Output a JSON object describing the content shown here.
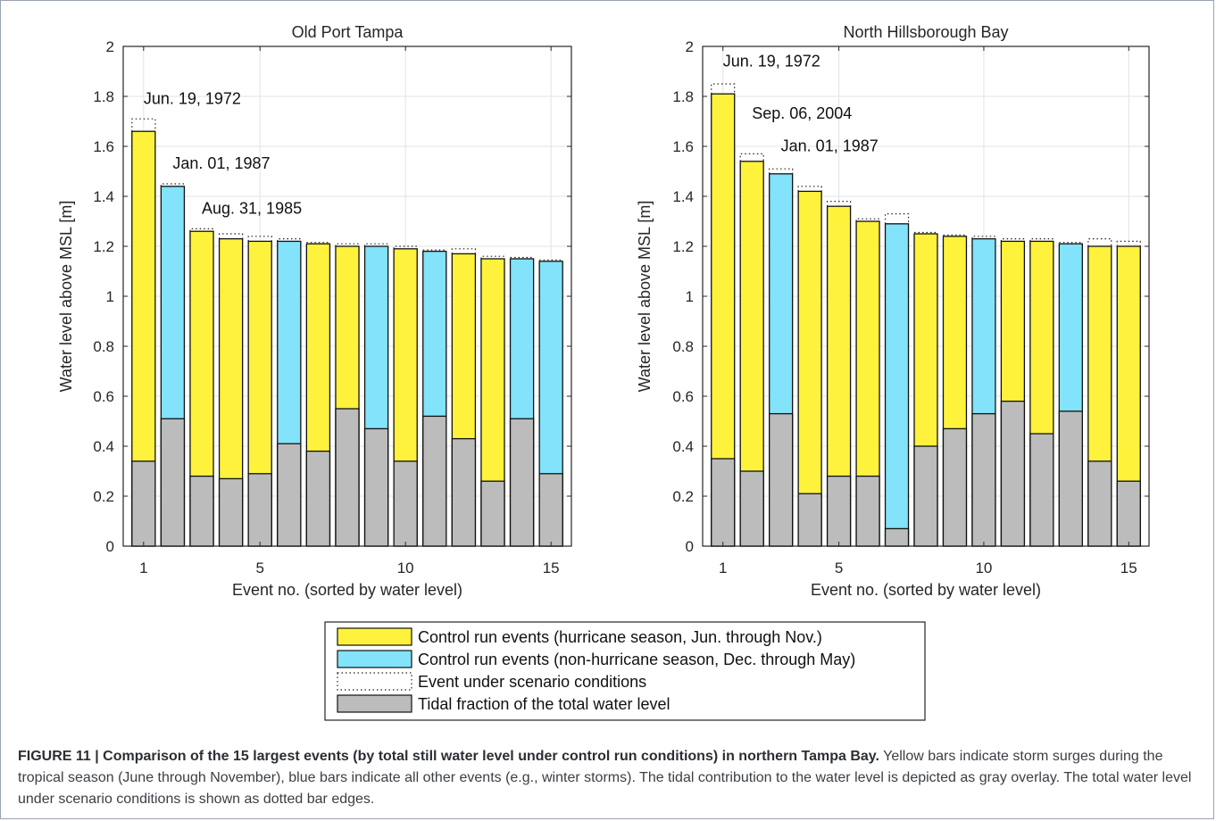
{
  "chart_data": [
    {
      "type": "bar",
      "title": "Old Port Tampa",
      "xlabel": "Event no. (sorted by water level)",
      "ylabel": "Water level above MSL [m]",
      "x": [
        1,
        2,
        3,
        4,
        5,
        6,
        7,
        8,
        9,
        10,
        11,
        12,
        13,
        14,
        15
      ],
      "xlim": [
        0.3,
        15.7
      ],
      "ylim": [
        0,
        2
      ],
      "xticks": [
        1,
        5,
        10,
        15
      ],
      "yticks": [
        0,
        0.2,
        0.4,
        0.6,
        0.8,
        1,
        1.2,
        1.4,
        1.6,
        1.8,
        2
      ],
      "ytick_labels": [
        "0",
        "0.2",
        "0.4",
        "0.6",
        "0.8",
        "1",
        "1.2",
        "1.4",
        "1.6",
        "1.8",
        "2"
      ],
      "grid": true,
      "series": [
        {
          "name": "Control run events (hurricane season, Jun. through Nov.)",
          "color": "#fef23c",
          "values": [
            1.66,
            null,
            1.26,
            1.23,
            1.22,
            null,
            1.21,
            1.2,
            null,
            1.19,
            null,
            1.17,
            1.15,
            null,
            null
          ]
        },
        {
          "name": "Control run events (non-hurricane season, Dec. through May)",
          "color": "#82e3fa",
          "values": [
            null,
            1.44,
            null,
            null,
            null,
            1.22,
            null,
            null,
            1.2,
            null,
            1.18,
            null,
            null,
            1.15,
            1.14
          ]
        },
        {
          "name": "Event under scenario conditions",
          "values": [
            1.71,
            1.45,
            1.27,
            1.25,
            1.24,
            1.23,
            1.21,
            1.21,
            1.21,
            1.2,
            1.18,
            1.19,
            1.16,
            1.15,
            1.14
          ]
        },
        {
          "name": "Tidal fraction of the total water level",
          "color": "#bcbcbc",
          "values": [
            0.34,
            0.51,
            0.28,
            0.27,
            0.29,
            0.41,
            0.38,
            0.55,
            0.47,
            0.34,
            0.52,
            0.43,
            0.26,
            0.51,
            0.29
          ]
        }
      ],
      "annotations": [
        {
          "text": "Jun. 19, 1972",
          "x": 1,
          "y": 1.77
        },
        {
          "text": "Jan. 01, 1987",
          "x": 2,
          "y": 1.51
        },
        {
          "text": "Aug. 31, 1985",
          "x": 3,
          "y": 1.33
        }
      ]
    },
    {
      "type": "bar",
      "title": "North Hillsborough Bay",
      "xlabel": "Event no. (sorted by water level)",
      "ylabel": "Water level above MSL [m]",
      "x": [
        1,
        2,
        3,
        4,
        5,
        6,
        7,
        8,
        9,
        10,
        11,
        12,
        13,
        14,
        15
      ],
      "xlim": [
        0.3,
        15.7
      ],
      "ylim": [
        0,
        2
      ],
      "xticks": [
        1,
        5,
        10,
        15
      ],
      "yticks": [
        0,
        0.2,
        0.4,
        0.6,
        0.8,
        1,
        1.2,
        1.4,
        1.6,
        1.8,
        2
      ],
      "ytick_labels": [
        "0",
        "0.2",
        "0.4",
        "0.6",
        "0.8",
        "1",
        "1.2",
        "1.4",
        "1.6",
        "1.8",
        "2"
      ],
      "grid": true,
      "series": [
        {
          "name": "Control run events (hurricane season, Jun. through Nov.)",
          "color": "#fef23c",
          "values": [
            1.81,
            1.54,
            null,
            1.42,
            1.36,
            1.3,
            null,
            1.25,
            1.24,
            null,
            1.22,
            1.22,
            null,
            1.2,
            1.2
          ]
        },
        {
          "name": "Control run events (non-hurricane season, Dec. through May)",
          "color": "#82e3fa",
          "values": [
            null,
            null,
            1.49,
            null,
            null,
            null,
            1.29,
            null,
            null,
            1.23,
            null,
            null,
            1.21,
            null,
            null
          ]
        },
        {
          "name": "Event under scenario conditions",
          "values": [
            1.85,
            1.57,
            1.51,
            1.44,
            1.38,
            1.31,
            1.33,
            1.25,
            1.24,
            1.24,
            1.23,
            1.23,
            1.21,
            1.23,
            1.22
          ]
        },
        {
          "name": "Tidal fraction of the total water level",
          "color": "#bcbcbc",
          "values": [
            0.35,
            0.3,
            0.53,
            0.21,
            0.28,
            0.28,
            0.07,
            0.4,
            0.47,
            0.53,
            0.58,
            0.45,
            0.54,
            0.34,
            0.26
          ]
        }
      ],
      "annotations": [
        {
          "text": "Jun. 19, 1972",
          "x": 1,
          "y": 1.92
        },
        {
          "text": "Sep. 06, 2004",
          "x": 2,
          "y": 1.71
        },
        {
          "text": "Jan. 01, 1987",
          "x": 3,
          "y": 1.58
        }
      ]
    }
  ],
  "legend": {
    "placement": "below",
    "items": [
      {
        "label": "Control run events (hurricane season, Jun. through Nov.)",
        "style": "fill",
        "color": "#fef23c"
      },
      {
        "label": "Control run events (non-hurricane season, Dec. through May)",
        "style": "fill",
        "color": "#82e3fa"
      },
      {
        "label": "Event under scenario conditions",
        "style": "dotted",
        "color": "#000000"
      },
      {
        "label": "Tidal fraction of the total water level",
        "style": "fill",
        "color": "#bcbcbc"
      }
    ]
  },
  "caption": {
    "label": "FIGURE 11 | Comparison of the 15 largest events (by total still water level under control run conditions) in northern Tampa Bay.",
    "text": "Yellow bars indicate storm surges during the tropical season (June through November), blue bars indicate all other events (e.g., winter storms). The tidal contribution to the water level is depicted as gray overlay. The total water level under scenario conditions is shown as dotted bar edges."
  }
}
